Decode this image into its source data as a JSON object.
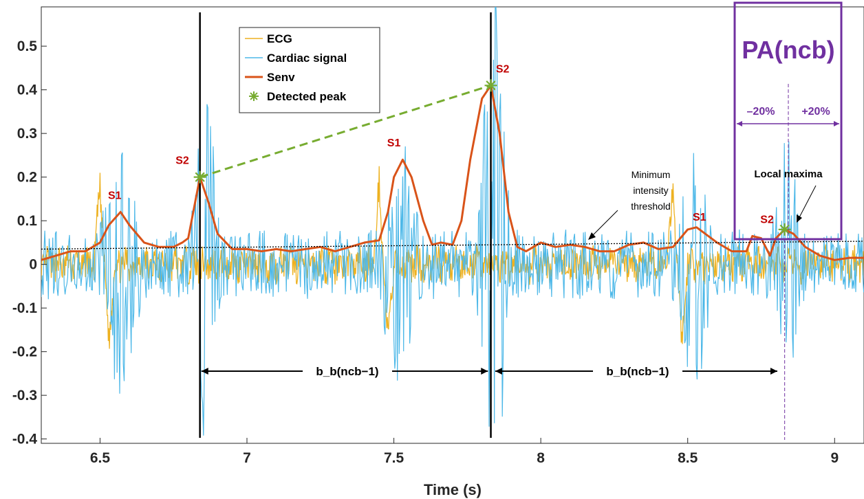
{
  "chart_data": {
    "type": "line",
    "title": "",
    "xlabel": "Time (s)",
    "ylabel": "",
    "xlim": [
      6.3,
      9.1
    ],
    "ylim": [
      -0.41,
      0.59
    ],
    "x_ticks": [
      "6.5",
      "7",
      "7.5",
      "8",
      "8.5",
      "9"
    ],
    "x_tick_values": [
      6.5,
      7.0,
      7.5,
      8.0,
      8.5,
      9.0
    ],
    "y_ticks": [
      "0.5",
      "0.4",
      "0.3",
      "0.2",
      "0.1",
      "0",
      "-0.1",
      "-0.2",
      "-0.3",
      "-0.4"
    ],
    "y_tick_values": [
      0.5,
      0.4,
      0.3,
      0.2,
      0.1,
      0.0,
      -0.1,
      -0.2,
      -0.3,
      -0.4
    ],
    "legend": {
      "placement": "top-center",
      "entries": [
        "ECG",
        "Cardiac signal",
        "Senv",
        "Detected peak"
      ]
    },
    "colors": {
      "ecg": "#edb120",
      "cardiac": "#4db8e8",
      "senv": "#d95319",
      "peak": "#77ac30",
      "annotation_purple": "#7030a0",
      "label_red": "#c00000"
    },
    "series": [
      {
        "name": "Senv",
        "x": [
          6.3,
          6.35,
          6.4,
          6.45,
          6.5,
          6.53,
          6.57,
          6.6,
          6.65,
          6.7,
          6.75,
          6.78,
          6.8,
          6.84,
          6.87,
          6.9,
          6.95,
          7.0,
          7.05,
          7.1,
          7.15,
          7.2,
          7.25,
          7.3,
          7.35,
          7.4,
          7.45,
          7.48,
          7.5,
          7.53,
          7.56,
          7.6,
          7.63,
          7.66,
          7.7,
          7.73,
          7.76,
          7.8,
          7.83,
          7.86,
          7.89,
          7.92,
          7.95,
          8.0,
          8.05,
          8.1,
          8.15,
          8.2,
          8.25,
          8.3,
          8.35,
          8.4,
          8.45,
          8.5,
          8.53,
          8.56,
          8.6,
          8.65,
          8.7,
          8.72,
          8.75,
          8.78,
          8.8,
          8.83,
          8.86,
          8.9,
          8.95,
          9.0,
          9.05,
          9.1
        ],
        "y": [
          0.01,
          0.02,
          0.03,
          0.03,
          0.05,
          0.09,
          0.12,
          0.09,
          0.05,
          0.04,
          0.04,
          0.05,
          0.06,
          0.2,
          0.14,
          0.07,
          0.035,
          0.035,
          0.03,
          0.035,
          0.03,
          0.035,
          0.04,
          0.03,
          0.04,
          0.05,
          0.055,
          0.12,
          0.2,
          0.24,
          0.2,
          0.1,
          0.045,
          0.05,
          0.045,
          0.1,
          0.24,
          0.38,
          0.41,
          0.3,
          0.12,
          0.04,
          0.03,
          0.05,
          0.04,
          0.045,
          0.04,
          0.03,
          0.03,
          0.045,
          0.05,
          0.035,
          0.04,
          0.08,
          0.085,
          0.07,
          0.05,
          0.03,
          0.03,
          0.065,
          0.06,
          0.02,
          0.06,
          0.08,
          0.07,
          0.04,
          0.02,
          0.01,
          0.015,
          0.015
        ]
      },
      {
        "name": "Detected peak",
        "x": [
          6.84,
          7.83,
          8.83
        ],
        "y": [
          0.2,
          0.41,
          0.08
        ]
      }
    ],
    "annotations": {
      "peak_labels": [
        {
          "text": "S1",
          "x": 6.55,
          "y": 0.15
        },
        {
          "text": "S2",
          "x": 6.78,
          "y": 0.23
        },
        {
          "text": "S1",
          "x": 7.5,
          "y": 0.27
        },
        {
          "text": "S2",
          "x": 7.87,
          "y": 0.44
        },
        {
          "text": "S1",
          "x": 8.54,
          "y": 0.1
        },
        {
          "text": "S2",
          "x": 8.77,
          "y": 0.095
        }
      ],
      "interval_left": "b_b(ncb−1)",
      "interval_right": "b_b(ncb−1)",
      "threshold_label_lines": [
        "Minimum",
        "intensity",
        "threshold"
      ],
      "local_maxima_label": "Local maxima",
      "pa_label": "PA(ncb)",
      "minus_pct": "–20%",
      "plus_pct": "+20%"
    }
  }
}
